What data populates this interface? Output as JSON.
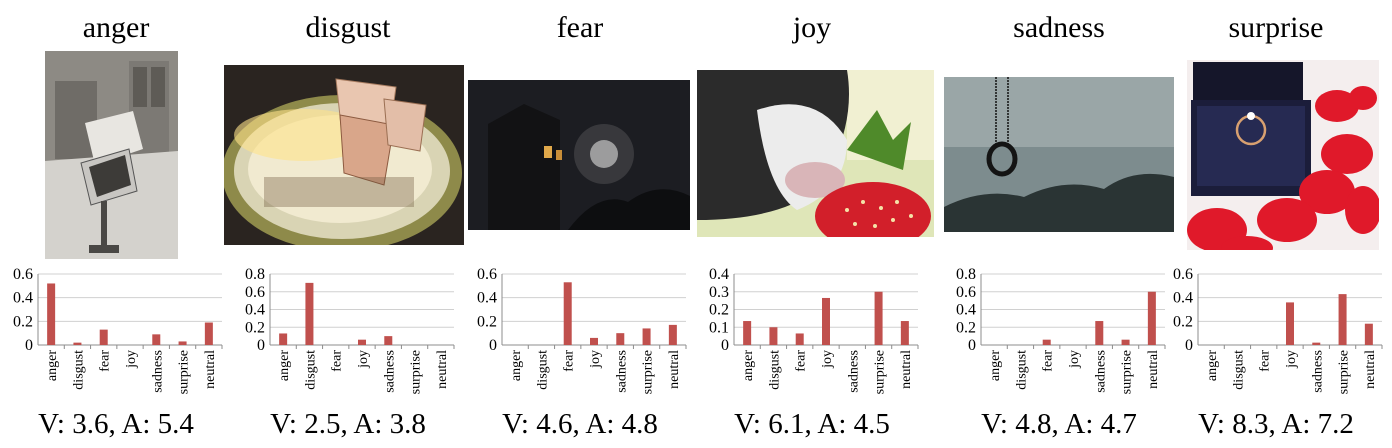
{
  "chart_data": [
    {
      "type": "bar",
      "title": "anger",
      "categories": [
        "anger",
        "disgust",
        "fear",
        "joy",
        "sadness",
        "surprise",
        "neutral"
      ],
      "values": [
        0.52,
        0.02,
        0.13,
        0.0,
        0.09,
        0.03,
        0.19
      ],
      "ylim": [
        0,
        0.6
      ],
      "yticks": [
        "0",
        "0.2",
        "0.4",
        "0.6"
      ],
      "caption": "V: 3.6, A: 5.4",
      "bar_color": "#c0504d",
      "grid": true
    },
    {
      "type": "bar",
      "title": "disgust",
      "categories": [
        "anger",
        "disgust",
        "fear",
        "joy",
        "sadness",
        "surprise",
        "neutral"
      ],
      "values": [
        0.13,
        0.7,
        0.0,
        0.06,
        0.1,
        0.0,
        0.0
      ],
      "ylim": [
        0,
        0.8
      ],
      "yticks": [
        "0",
        "0.2",
        "0.4",
        "0.6",
        "0.8"
      ],
      "caption": "V: 2.5, A: 3.8",
      "bar_color": "#c0504d",
      "grid": true
    },
    {
      "type": "bar",
      "title": "fear",
      "categories": [
        "anger",
        "disgust",
        "fear",
        "joy",
        "sadness",
        "surprise",
        "neutral"
      ],
      "values": [
        0.0,
        0.0,
        0.53,
        0.06,
        0.1,
        0.14,
        0.17
      ],
      "ylim": [
        0,
        0.6
      ],
      "yticks": [
        "0",
        "0.2",
        "0.4",
        "0.6"
      ],
      "caption": "V: 4.6, A: 4.8",
      "bar_color": "#c0504d",
      "grid": true
    },
    {
      "type": "bar",
      "title": "joy",
      "categories": [
        "anger",
        "disgust",
        "fear",
        "joy",
        "sadness",
        "surprise",
        "neutral"
      ],
      "values": [
        0.135,
        0.1,
        0.065,
        0.265,
        0.0,
        0.3,
        0.135
      ],
      "ylim": [
        0,
        0.4
      ],
      "yticks": [
        "0",
        "0.1",
        "0.2",
        "0.3",
        "0.4"
      ],
      "caption": "V: 6.1, A: 4.5",
      "bar_color": "#c0504d",
      "grid": true
    },
    {
      "type": "bar",
      "title": "sadness",
      "categories": [
        "anger",
        "disgust",
        "fear",
        "joy",
        "sadness",
        "surprise",
        "neutral"
      ],
      "values": [
        0.0,
        0.0,
        0.06,
        0.0,
        0.27,
        0.06,
        0.6
      ],
      "ylim": [
        0,
        0.8
      ],
      "yticks": [
        "0",
        "0.2",
        "0.4",
        "0.6",
        "0.8"
      ],
      "caption": "V: 4.8, A: 4.7",
      "bar_color": "#c0504d",
      "grid": true
    },
    {
      "type": "bar",
      "title": "surprise",
      "categories": [
        "anger",
        "disgust",
        "fear",
        "joy",
        "sadness",
        "surprise",
        "neutral"
      ],
      "values": [
        0.0,
        0.0,
        0.0,
        0.36,
        0.02,
        0.43,
        0.18
      ],
      "ylim": [
        0,
        0.6
      ],
      "yticks": [
        "0",
        "0.2",
        "0.4",
        "0.6"
      ],
      "caption": "V: 8.3, A: 7.2",
      "bar_color": "#c0504d",
      "grid": true
    }
  ]
}
